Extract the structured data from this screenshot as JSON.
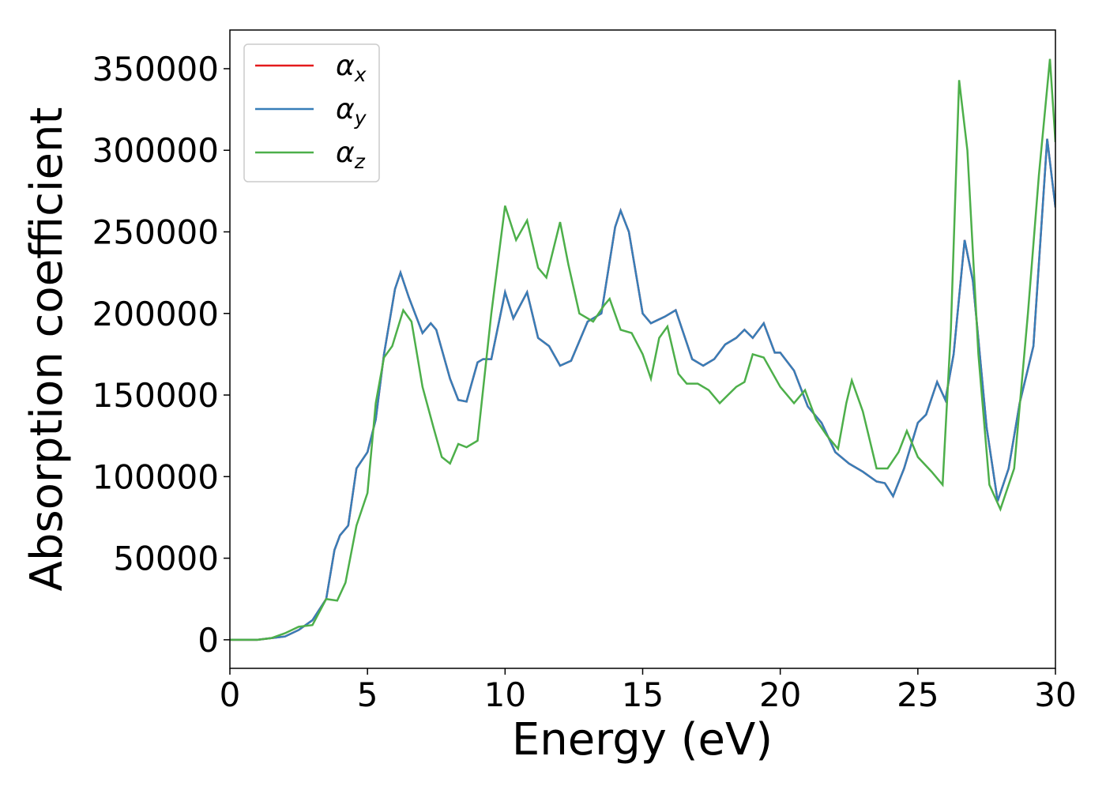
{
  "chart_data": {
    "type": "line",
    "xlabel": "Energy (eV)",
    "ylabel": "Absorption coefficient",
    "xlim": [
      0,
      30
    ],
    "xticks": [
      0,
      5,
      10,
      15,
      20,
      25,
      30
    ],
    "ylim": [
      -17500,
      373700
    ],
    "yticks": [
      0,
      50000,
      100000,
      150000,
      200000,
      250000,
      300000,
      350000
    ],
    "legend": "upper left",
    "series": [
      {
        "name": "αx",
        "color": "#e41a1c",
        "x": [
          0,
          0.5,
          1,
          1.5,
          2,
          2.5,
          3,
          3.5,
          3.8,
          4,
          4.3,
          4.6,
          5,
          5.3,
          5.6,
          6,
          6.2,
          6.5,
          7,
          7.3,
          7.5,
          8,
          8.3,
          8.6,
          9,
          9.2,
          9.5,
          10,
          10.3,
          10.8,
          11.2,
          11.6,
          12,
          12.4,
          13,
          13.5,
          14,
          14.2,
          14.5,
          15,
          15.3,
          15.8,
          16.2,
          16.8,
          17.2,
          17.6,
          18,
          18.4,
          18.7,
          19,
          19.4,
          19.8,
          20,
          20.5,
          21,
          21.5,
          22,
          22.5,
          23,
          23.5,
          23.8,
          24.1,
          24.5,
          25,
          25.3,
          25.7,
          26,
          26.3,
          26.7,
          27,
          27.5,
          27.9,
          28.3,
          28.7,
          29.2,
          29.7,
          30
        ],
        "values": [
          0,
          0,
          0,
          1000,
          2000,
          6000,
          12000,
          25000,
          55000,
          64000,
          70000,
          105000,
          115000,
          135000,
          175000,
          215000,
          225000,
          210000,
          188000,
          194000,
          190000,
          160000,
          147000,
          146000,
          170000,
          172000,
          172000,
          213000,
          197000,
          213000,
          185000,
          180000,
          168000,
          171000,
          195000,
          200000,
          253000,
          263000,
          250000,
          200000,
          194000,
          198000,
          202000,
          172000,
          168000,
          172000,
          181000,
          185000,
          190000,
          185000,
          194000,
          176000,
          176000,
          165000,
          143000,
          133000,
          115000,
          108000,
          103000,
          97000,
          96000,
          88000,
          105000,
          133000,
          138000,
          158000,
          147000,
          175000,
          245000,
          220000,
          130000,
          85000,
          105000,
          145000,
          180000,
          307000,
          265000
        ]
      },
      {
        "name": "αy",
        "color": "#377eb8",
        "x": [
          0,
          0.5,
          1,
          1.5,
          2,
          2.5,
          3,
          3.5,
          3.8,
          4,
          4.3,
          4.6,
          5,
          5.3,
          5.6,
          6,
          6.2,
          6.5,
          7,
          7.3,
          7.5,
          8,
          8.3,
          8.6,
          9,
          9.2,
          9.5,
          10,
          10.3,
          10.8,
          11.2,
          11.6,
          12,
          12.4,
          13,
          13.5,
          14,
          14.2,
          14.5,
          15,
          15.3,
          15.8,
          16.2,
          16.8,
          17.2,
          17.6,
          18,
          18.4,
          18.7,
          19,
          19.4,
          19.8,
          20,
          20.5,
          21,
          21.5,
          22,
          22.5,
          23,
          23.5,
          23.8,
          24.1,
          24.5,
          25,
          25.3,
          25.7,
          26,
          26.3,
          26.7,
          27,
          27.5,
          27.9,
          28.3,
          28.7,
          29.2,
          29.7,
          30
        ],
        "values": [
          0,
          0,
          0,
          1000,
          2000,
          6000,
          12000,
          25000,
          55000,
          64000,
          70000,
          105000,
          115000,
          135000,
          175000,
          215000,
          225000,
          210000,
          188000,
          194000,
          190000,
          160000,
          147000,
          146000,
          170000,
          172000,
          172000,
          213000,
          197000,
          213000,
          185000,
          180000,
          168000,
          171000,
          195000,
          200000,
          253000,
          263000,
          250000,
          200000,
          194000,
          198000,
          202000,
          172000,
          168000,
          172000,
          181000,
          185000,
          190000,
          185000,
          194000,
          176000,
          176000,
          165000,
          143000,
          133000,
          115000,
          108000,
          103000,
          97000,
          96000,
          88000,
          105000,
          133000,
          138000,
          158000,
          147000,
          175000,
          245000,
          220000,
          130000,
          85000,
          105000,
          145000,
          180000,
          307000,
          265000
        ]
      },
      {
        "name": "αz",
        "color": "#4daf4a",
        "x": [
          0,
          1,
          1.5,
          2,
          2.5,
          3,
          3.5,
          3.9,
          4.2,
          4.6,
          5,
          5.3,
          5.6,
          5.9,
          6.3,
          6.6,
          7,
          7.4,
          7.7,
          8,
          8.3,
          8.6,
          9,
          9.5,
          10,
          10.4,
          10.8,
          11.2,
          11.5,
          12,
          12.3,
          12.7,
          13.2,
          13.6,
          13.8,
          14.2,
          14.6,
          15,
          15.3,
          15.6,
          15.9,
          16.3,
          16.6,
          17,
          17.4,
          17.8,
          18.1,
          18.4,
          18.7,
          19,
          19.4,
          20,
          20.5,
          20.9,
          21.3,
          21.7,
          22.1,
          22.4,
          22.6,
          23,
          23.5,
          23.9,
          24.3,
          24.6,
          25,
          25.5,
          25.9,
          26.2,
          26.5,
          26.8,
          27.2,
          27.6,
          28,
          28.5,
          29,
          29.4,
          29.8,
          30
        ],
        "values": [
          0,
          0,
          1000,
          4000,
          8000,
          9000,
          25000,
          24000,
          35000,
          70000,
          90000,
          145000,
          173000,
          180000,
          202000,
          195000,
          155000,
          130000,
          112000,
          108000,
          120000,
          118000,
          122000,
          200000,
          266000,
          245000,
          257000,
          228000,
          222000,
          256000,
          230000,
          200000,
          195000,
          205000,
          209000,
          190000,
          188000,
          175000,
          160000,
          185000,
          192000,
          163000,
          157000,
          157000,
          153000,
          145000,
          150000,
          155000,
          158000,
          175000,
          173000,
          155000,
          145000,
          153000,
          135000,
          125000,
          117000,
          145000,
          159000,
          140000,
          105000,
          105000,
          115000,
          128000,
          112000,
          103000,
          95000,
          190000,
          343000,
          300000,
          175000,
          95000,
          80000,
          105000,
          200000,
          285000,
          356000,
          305000
        ]
      }
    ]
  }
}
